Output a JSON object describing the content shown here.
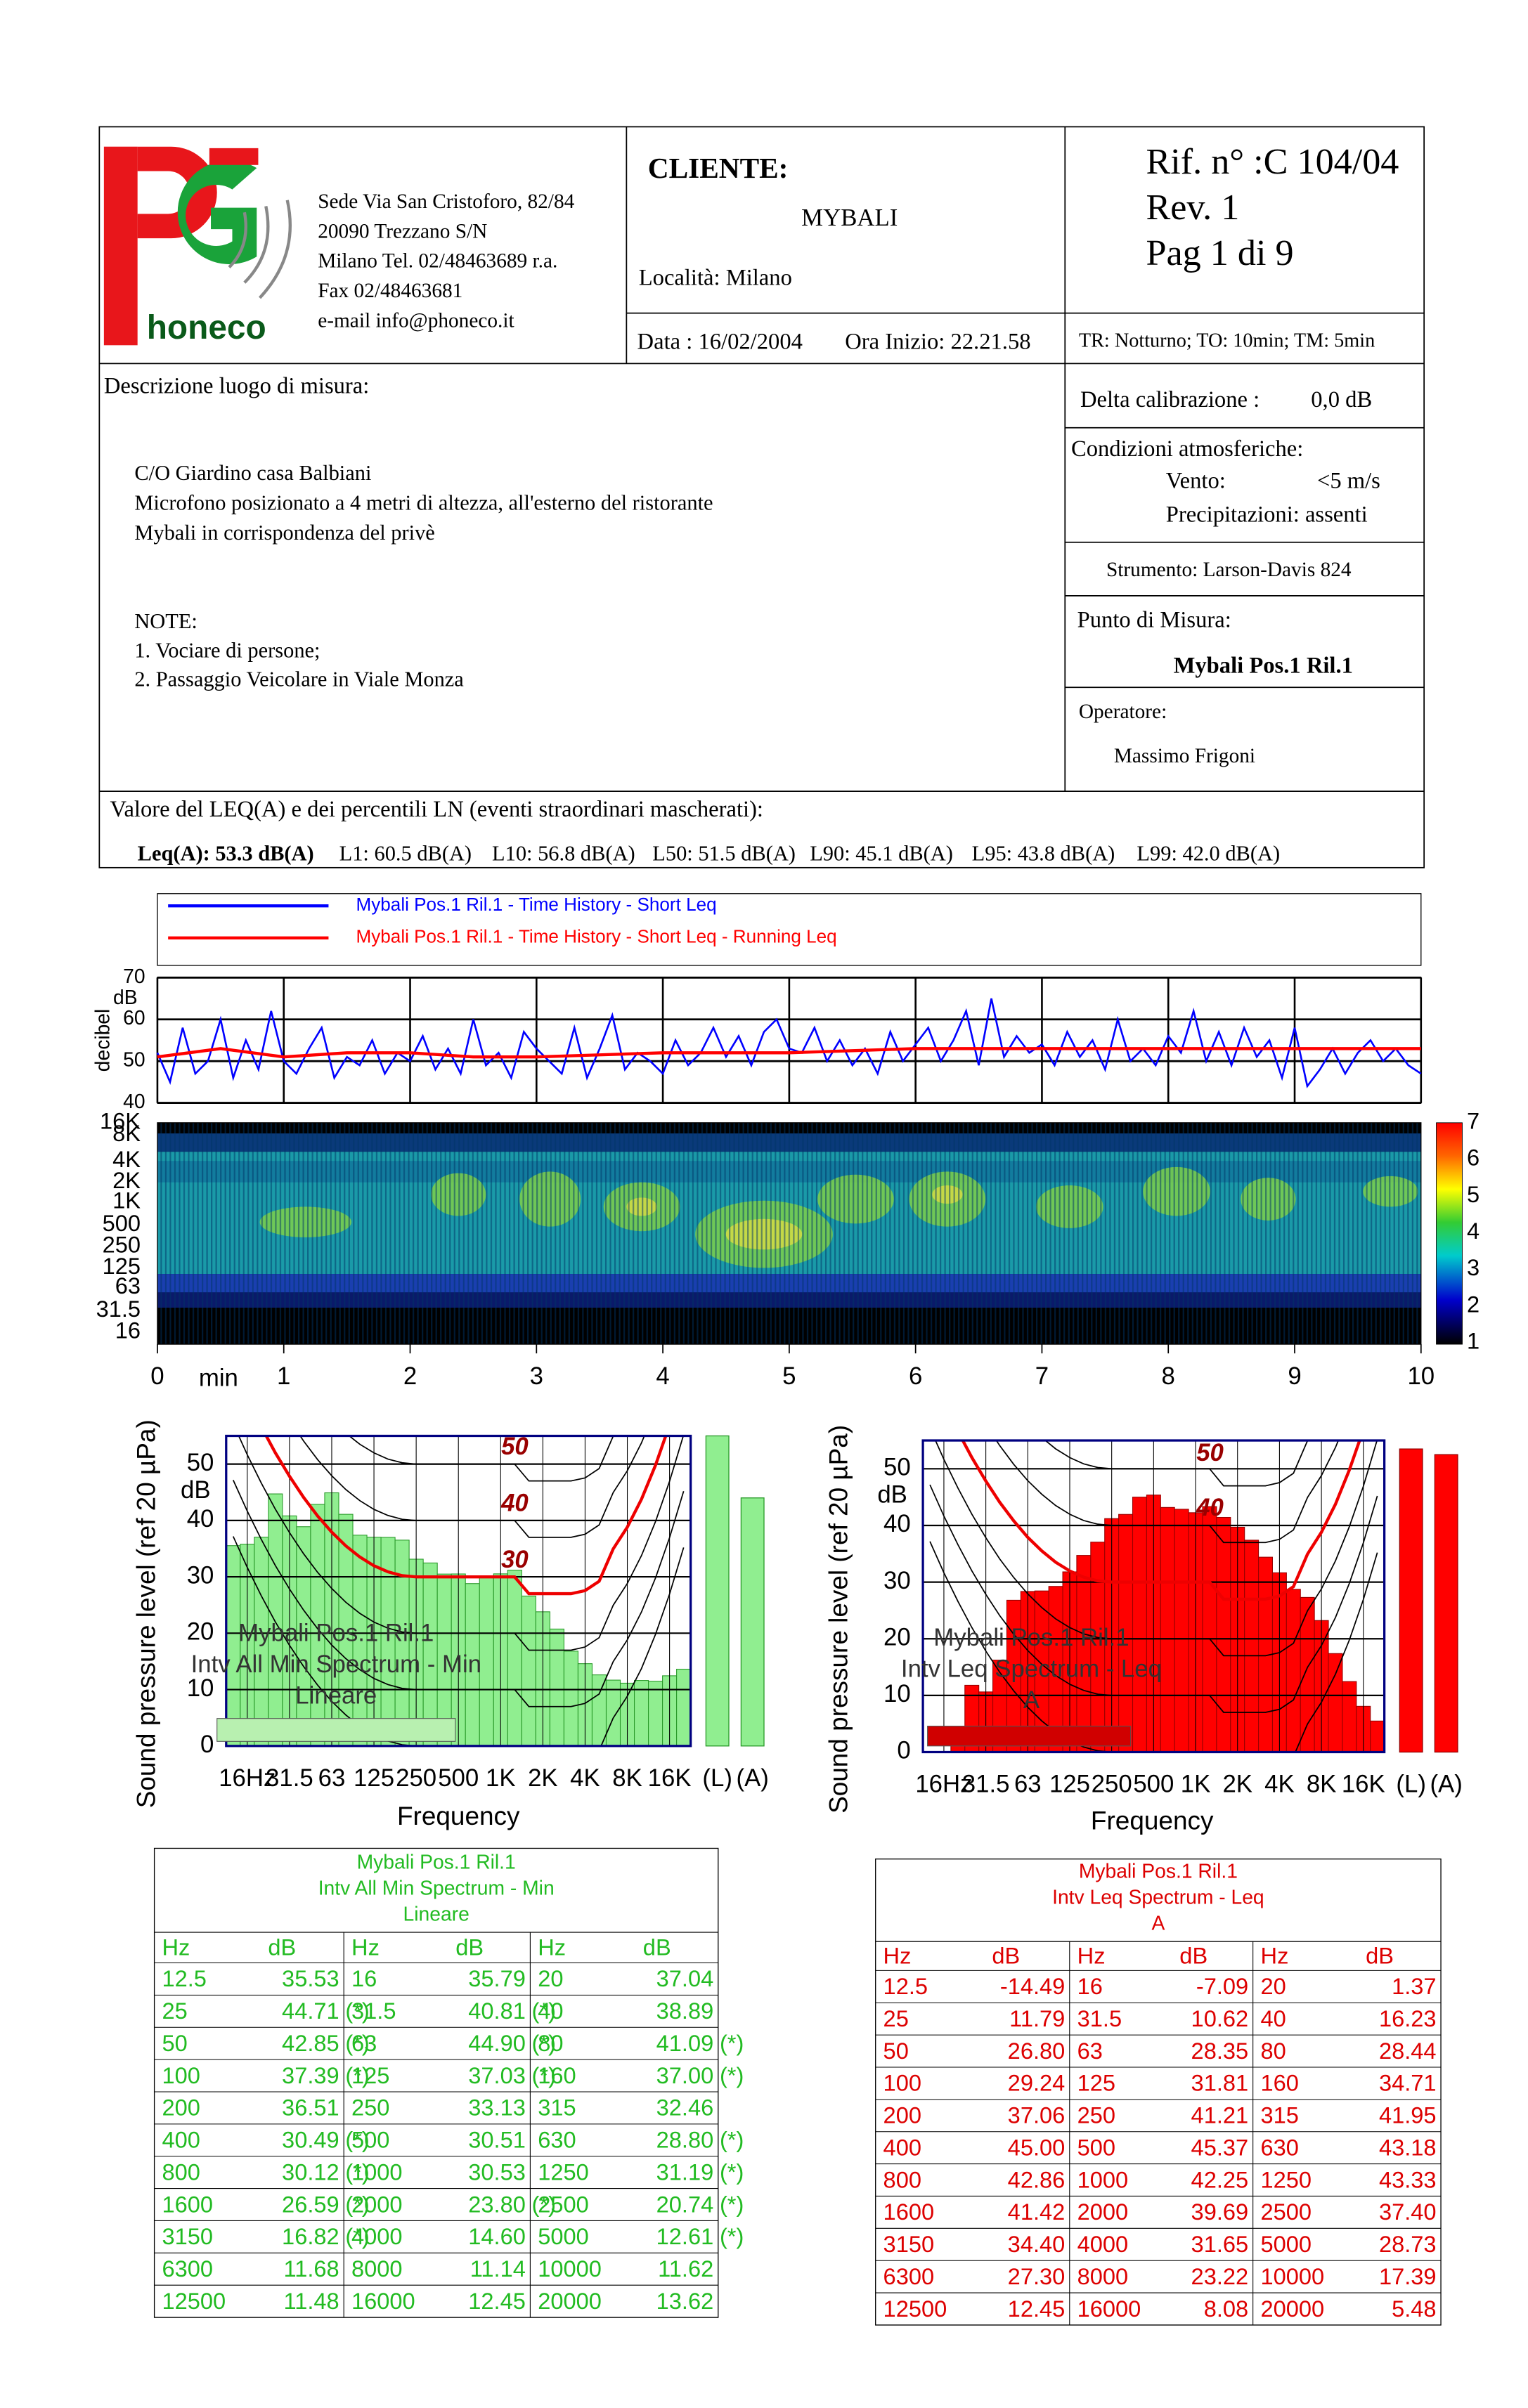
{
  "header": {
    "logo": "honeco",
    "address": [
      "Sede Via San Cristoforo, 82/84",
      "20090 Trezzano S/N",
      "Milano Tel. 02/48463689 r.a.",
      "Fax 02/48463681",
      "e-mail info@phoneco.it"
    ],
    "client_label": "CLIENTE:",
    "client": "MYBALI",
    "location": "Località: Milano",
    "date": "Data : 16/02/2004",
    "start": "Ora Inizio: 22.21.58",
    "ref": "Rif. n° :C 104/04",
    "rev": "Rev. 1",
    "page": "Pag 1 di 9",
    "times": "TR: Notturno; TO: 10min; TM: 5min"
  },
  "description": {
    "label": "Descrizione luogo di misura:",
    "lines": [
      "C/O Giardino casa Balbiani",
      "Microfono posizionato a 4 metri di altezza, all'esterno del ristorante",
      "Mybali in corrispondenza del privè"
    ],
    "notes_label": "NOTE:",
    "notes": [
      "1. Vociare di persone;",
      "2. Passaggio Veicolare in Viale Monza"
    ]
  },
  "side": {
    "calibration_label": "Delta calibrazione :",
    "calibration": "0,0 dB",
    "conditions": "Condizioni atmosferiche:",
    "wind_label": "Vento:",
    "wind": "<5 m/s",
    "precipitation": "Precipitazioni: assenti",
    "instrument": "Strumento:  Larson-Davis 824",
    "point_label": "Punto di Misura:",
    "point": "Mybali Pos.1 Ril.1",
    "operator_label": "Operatore:",
    "operator": "Massimo Frigoni"
  },
  "levels": {
    "label": "Valore del  LEQ(A) e dei percentili LN (eventi straordinari mascherati):",
    "items": [
      "Leq(A): 53.3 dB(A)",
      "L1: 60.5 dB(A)",
      "L10: 56.8 dB(A)",
      "L50: 51.5 dB(A)",
      "L90: 45.1 dB(A)",
      "L95: 43.8 dB(A)",
      "L99: 42.0 dB(A)"
    ]
  },
  "time_history": {
    "type": "line",
    "ylabel": "decibel",
    "unit": "dB",
    "xunit": "min",
    "ylim": [
      40,
      70
    ],
    "yticks": [
      40,
      50,
      60,
      70
    ],
    "xlim": [
      0,
      10
    ],
    "xticks": [
      0,
      1,
      2,
      3,
      4,
      5,
      6,
      7,
      8,
      9,
      10
    ],
    "series": [
      {
        "name": "Mybali Pos.1 Ril.1 - Time History - Short Leq",
        "color": "#0000ff",
        "values": [
          52,
          45,
          58,
          47,
          50,
          60,
          46,
          55,
          48,
          62,
          50,
          47,
          53,
          58,
          46,
          51,
          49,
          55,
          47,
          52,
          50,
          56,
          48,
          53,
          47,
          60,
          49,
          52,
          46,
          57,
          53,
          50,
          47,
          58,
          46,
          53,
          61,
          48,
          52,
          50,
          47,
          55,
          49,
          52,
          58,
          51,
          56,
          49,
          57,
          60,
          53,
          52,
          58,
          50,
          55,
          49,
          53,
          47,
          57,
          50,
          54,
          58,
          50,
          55,
          62,
          49,
          65,
          51,
          56,
          52,
          54,
          49,
          57,
          51,
          55,
          48,
          60,
          50,
          53,
          49,
          56,
          52,
          62,
          50,
          57,
          49,
          58,
          51,
          55,
          46,
          58,
          44,
          48,
          53,
          47,
          52,
          55,
          50,
          53,
          49,
          47
        ]
      },
      {
        "name": "Mybali Pos.1 Ril.1 - Time History - Short Leq - Running Leq",
        "color": "#ff0000",
        "values": [
          51,
          53,
          51,
          52,
          52,
          51,
          51,
          51.5,
          52,
          52,
          52,
          52.5,
          53,
          53,
          53,
          53,
          53,
          53,
          53,
          53,
          53
        ]
      }
    ],
    "spectrogram_ticks": [
      "16K",
      "8K",
      "4K",
      "2K",
      "1K",
      "500",
      "250",
      "125",
      "63",
      "31.5",
      "16"
    ],
    "colorbar_ticks": [
      7,
      6,
      5,
      4,
      3,
      2,
      1
    ]
  },
  "spectra": [
    {
      "type": "bar",
      "color": "#90ee90",
      "title": [
        "Mybali Pos.1 Ril.1",
        "Intv All Min Spectrum - Min",
        "Lineare"
      ],
      "ylabel": "Sound pressure level (ref 20 µPa)",
      "xlabel": "Frequency",
      "unit": "dB",
      "ylim": [
        0,
        55
      ],
      "yticks": [
        0,
        10,
        20,
        30,
        40,
        50
      ],
      "xticks": [
        "16Hz",
        "31.5",
        "63",
        "125",
        "250",
        "500",
        "1K",
        "2K",
        "4K",
        "8K",
        "16K"
      ],
      "curve_labels": [
        "50",
        "40",
        "30"
      ],
      "totals": [
        {
          "label": "(L)",
          "value": 55
        },
        {
          "label": "(A)",
          "value": 44
        }
      ],
      "table": {
        "header": [
          "Hz",
          "dB",
          "Hz",
          "dB",
          "Hz",
          "dB"
        ],
        "rows": [
          [
            {
              "hz": "12.5",
              "db": "35.53"
            },
            {
              "hz": "16",
              "db": "35.79"
            },
            {
              "hz": "20",
              "db": "37.04"
            }
          ],
          [
            {
              "hz": "25",
              "db": "44.71",
              "flag": "(*)"
            },
            {
              "hz": "31.5",
              "db": "40.81",
              "flag": "(*)"
            },
            {
              "hz": "40",
              "db": "38.89"
            }
          ],
          [
            {
              "hz": "50",
              "db": "42.85",
              "flag": "(*)"
            },
            {
              "hz": "63",
              "db": "44.90",
              "flag": "(*)"
            },
            {
              "hz": "80",
              "db": "41.09",
              "flag": "(*)"
            }
          ],
          [
            {
              "hz": "100",
              "db": "37.39",
              "flag": "(*)"
            },
            {
              "hz": "125",
              "db": "37.03",
              "flag": "(*)"
            },
            {
              "hz": "160",
              "db": "37.00",
              "flag": "(*)"
            }
          ],
          [
            {
              "hz": "200",
              "db": "36.51"
            },
            {
              "hz": "250",
              "db": "33.13"
            },
            {
              "hz": "315",
              "db": "32.46"
            }
          ],
          [
            {
              "hz": "400",
              "db": "30.49",
              "flag": "(*)"
            },
            {
              "hz": "500",
              "db": "30.51"
            },
            {
              "hz": "630",
              "db": "28.80",
              "flag": "(*)"
            }
          ],
          [
            {
              "hz": "800",
              "db": "30.12",
              "flag": "(*)"
            },
            {
              "hz": "1000",
              "db": "30.53"
            },
            {
              "hz": "1250",
              "db": "31.19",
              "flag": "(*)"
            }
          ],
          [
            {
              "hz": "1600",
              "db": "26.59",
              "flag": "(*)"
            },
            {
              "hz": "2000",
              "db": "23.80",
              "flag": "(*)"
            },
            {
              "hz": "2500",
              "db": "20.74",
              "flag": "(*)"
            }
          ],
          [
            {
              "hz": "3150",
              "db": "16.82",
              "flag": "(*)"
            },
            {
              "hz": "4000",
              "db": "14.60"
            },
            {
              "hz": "5000",
              "db": "12.61",
              "flag": "(*)"
            }
          ],
          [
            {
              "hz": "6300",
              "db": "11.68"
            },
            {
              "hz": "8000",
              "db": "11.14"
            },
            {
              "hz": "10000",
              "db": "11.62"
            }
          ],
          [
            {
              "hz": "12500",
              "db": "11.48"
            },
            {
              "hz": "16000",
              "db": "12.45"
            },
            {
              "hz": "20000",
              "db": "13.62"
            }
          ]
        ]
      }
    },
    {
      "type": "bar",
      "color": "#ff0000",
      "title": [
        "Mybali Pos.1 Ril.1",
        "Intv Leq Spectrum - Leq",
        "A"
      ],
      "ylabel": "Sound pressure level (ref 20 µPa)",
      "xlabel": "Frequency",
      "unit": "dB",
      "ylim": [
        0,
        55
      ],
      "yticks": [
        0,
        10,
        20,
        30,
        40,
        50
      ],
      "xticks": [
        "16Hz",
        "31.5",
        "63",
        "125",
        "250",
        "500",
        "1K",
        "2K",
        "4K",
        "8K",
        "16K"
      ],
      "curve_labels": [
        "50",
        "40"
      ],
      "totals": [
        {
          "label": "(L)",
          "value": 53.5
        },
        {
          "label": "(A)",
          "value": 52.5
        }
      ],
      "table": {
        "header": [
          "Hz",
          "dB",
          "Hz",
          "dB",
          "Hz",
          "dB"
        ],
        "rows": [
          [
            {
              "hz": "12.5",
              "db": "-14.49"
            },
            {
              "hz": "16",
              "db": "-7.09"
            },
            {
              "hz": "20",
              "db": "1.37"
            }
          ],
          [
            {
              "hz": "25",
              "db": "11.79"
            },
            {
              "hz": "31.5",
              "db": "10.62"
            },
            {
              "hz": "40",
              "db": "16.23"
            }
          ],
          [
            {
              "hz": "50",
              "db": "26.80"
            },
            {
              "hz": "63",
              "db": "28.35"
            },
            {
              "hz": "80",
              "db": "28.44"
            }
          ],
          [
            {
              "hz": "100",
              "db": "29.24"
            },
            {
              "hz": "125",
              "db": "31.81"
            },
            {
              "hz": "160",
              "db": "34.71"
            }
          ],
          [
            {
              "hz": "200",
              "db": "37.06"
            },
            {
              "hz": "250",
              "db": "41.21"
            },
            {
              "hz": "315",
              "db": "41.95"
            }
          ],
          [
            {
              "hz": "400",
              "db": "45.00"
            },
            {
              "hz": "500",
              "db": "45.37"
            },
            {
              "hz": "630",
              "db": "43.18"
            }
          ],
          [
            {
              "hz": "800",
              "db": "42.86"
            },
            {
              "hz": "1000",
              "db": "42.25"
            },
            {
              "hz": "1250",
              "db": "43.33"
            }
          ],
          [
            {
              "hz": "1600",
              "db": "41.42"
            },
            {
              "hz": "2000",
              "db": "39.69"
            },
            {
              "hz": "2500",
              "db": "37.40"
            }
          ],
          [
            {
              "hz": "3150",
              "db": "34.40"
            },
            {
              "hz": "4000",
              "db": "31.65"
            },
            {
              "hz": "5000",
              "db": "28.73"
            }
          ],
          [
            {
              "hz": "6300",
              "db": "27.30"
            },
            {
              "hz": "8000",
              "db": "23.22"
            },
            {
              "hz": "10000",
              "db": "17.39"
            }
          ],
          [
            {
              "hz": "12500",
              "db": "12.45"
            },
            {
              "hz": "16000",
              "db": "8.08"
            },
            {
              "hz": "20000",
              "db": "5.48"
            }
          ]
        ]
      }
    }
  ]
}
